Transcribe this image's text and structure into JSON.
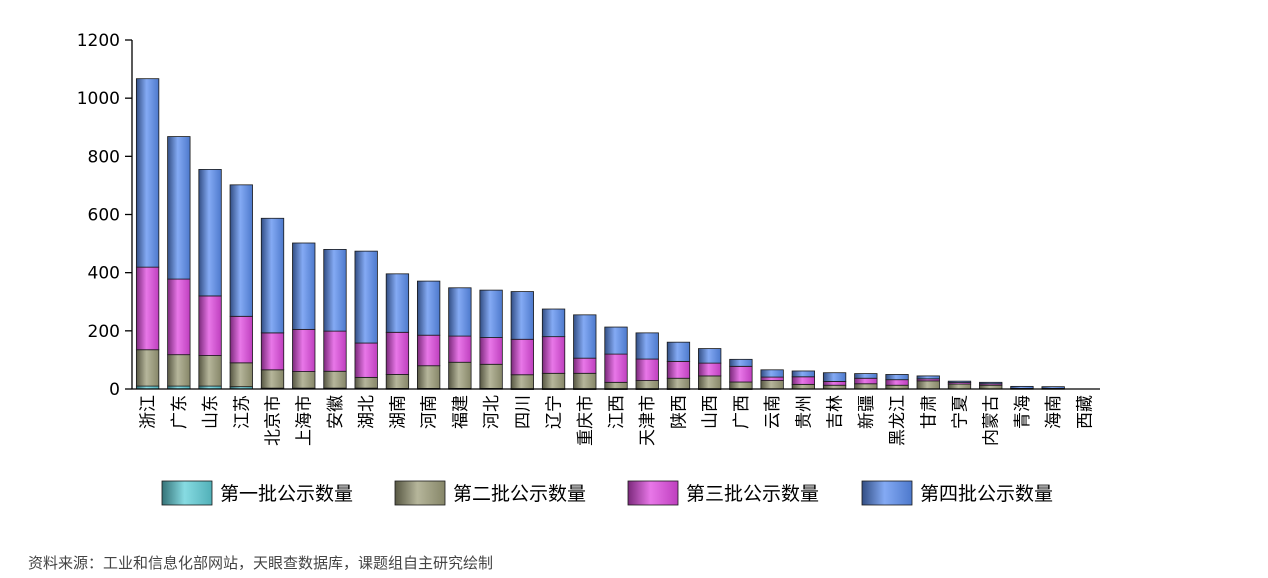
{
  "chart_data": {
    "type": "bar",
    "stacked": true,
    "categories": [
      "浙江",
      "广东",
      "山东",
      "江苏",
      "北京市",
      "上海市",
      "安徽",
      "湖北",
      "湖南",
      "河南",
      "福建",
      "河北",
      "四川",
      "辽宁",
      "重庆市",
      "江西",
      "天津市",
      "陕西",
      "山西",
      "广西",
      "云南",
      "贵州",
      "吉林",
      "新疆",
      "黑龙江",
      "甘肃",
      "宁夏",
      "内蒙古",
      "青海",
      "海南",
      "西藏"
    ],
    "series": [
      {
        "name": "第一批公示数量",
        "color": "#5fcfd8",
        "values": [
          10,
          10,
          10,
          8,
          3,
          3,
          3,
          3,
          2,
          2,
          2,
          2,
          1,
          1,
          1,
          1,
          1,
          1,
          1,
          1,
          0,
          0,
          0,
          0,
          0,
          0,
          0,
          0,
          0,
          0,
          0
        ]
      },
      {
        "name": "第二批公示数量",
        "color": "#9e9e7a",
        "values": [
          125,
          108,
          105,
          82,
          63,
          57,
          58,
          37,
          48,
          78,
          90,
          83,
          48,
          53,
          53,
          22,
          28,
          36,
          44,
          23,
          29,
          16,
          13,
          18,
          13,
          28,
          17,
          13,
          0,
          0,
          0
        ]
      },
      {
        "name": "第三批公示数量",
        "color": "#e04ae0",
        "values": [
          284,
          260,
          205,
          160,
          127,
          145,
          138,
          118,
          145,
          105,
          90,
          92,
          122,
          126,
          52,
          97,
          74,
          58,
          44,
          54,
          12,
          26,
          13,
          19,
          19,
          7,
          5,
          5,
          2,
          2,
          0
        ]
      },
      {
        "name": "第四批公示数量",
        "color": "#5b8ef0",
        "values": [
          648,
          490,
          435,
          452,
          394,
          297,
          281,
          316,
          201,
          186,
          166,
          163,
          164,
          95,
          149,
          93,
          90,
          66,
          50,
          24,
          25,
          20,
          30,
          16,
          18,
          10,
          5,
          5,
          7,
          6,
          0
        ]
      }
    ],
    "ylim": [
      0,
      1200
    ],
    "yticks": [
      0,
      200,
      400,
      600,
      800,
      1000,
      1200
    ],
    "legend_position": "bottom",
    "grid": false
  },
  "source_note": "资料来源：工业和信息化部网站，天眼查数据库，课题组自主研究绘制"
}
